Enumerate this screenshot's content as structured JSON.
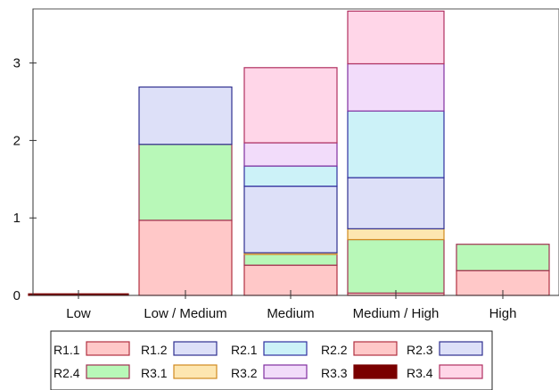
{
  "chart_data": {
    "type": "bar",
    "stacked": true,
    "title": "",
    "xlabel": "",
    "ylabel": "",
    "categories": [
      "Low",
      "Low / Medium",
      "Medium",
      "Medium / High",
      "High"
    ],
    "ylim": [
      0,
      3.7
    ],
    "yticks": [
      0,
      1,
      2,
      3
    ],
    "grid": false,
    "legend_position": "bottom",
    "legend_order": [
      "R1.1",
      "R1.2",
      "R2.1",
      "R2.2",
      "R2.3",
      "R2.4",
      "R3.1",
      "R3.2",
      "R3.3",
      "R3.4"
    ],
    "series": [
      {
        "name": "R1.1",
        "fill": "#ffc8c8",
        "stroke": "#b03040",
        "values": [
          0,
          0,
          0,
          0,
          0.32
        ]
      },
      {
        "name": "R1.2",
        "fill": "#dde0f8",
        "stroke": "#303090",
        "values": [
          0,
          0.74,
          0,
          0,
          0
        ]
      },
      {
        "name": "R2.1",
        "fill": "#ccf2f8",
        "stroke": "#3030a0",
        "values": [
          0,
          0,
          0.26,
          0.86,
          0
        ]
      },
      {
        "name": "R2.2",
        "fill": "#ffc8c8",
        "stroke": "#b03040",
        "values": [
          0,
          0.97,
          0.39,
          0.03,
          0
        ]
      },
      {
        "name": "R2.3",
        "fill": "#dde0f8",
        "stroke": "#303090",
        "values": [
          0,
          0,
          0.86,
          0.66,
          0
        ]
      },
      {
        "name": "R2.4",
        "fill": "#b8f8b8",
        "stroke": "#a03050",
        "values": [
          0,
          0.98,
          0.14,
          0.69,
          0.34
        ]
      },
      {
        "name": "R3.1",
        "fill": "#fde6b0",
        "stroke": "#d08a20",
        "values": [
          0,
          0,
          0.02,
          0.14,
          0
        ]
      },
      {
        "name": "R3.2",
        "fill": "#f2dcfa",
        "stroke": "#8030a0",
        "values": [
          0,
          0,
          0.3,
          0.61,
          0
        ]
      },
      {
        "name": "R3.3",
        "fill": "#7a0000",
        "stroke": "#7a0000",
        "values": [
          0.02,
          0,
          0,
          0,
          0
        ]
      },
      {
        "name": "R3.4",
        "fill": "#ffd6e8",
        "stroke": "#b03060",
        "values": [
          0,
          0,
          0.97,
          0.68,
          0
        ]
      }
    ],
    "stack_order": [
      "R3.3",
      "R2.2",
      "R1.1",
      "R2.4",
      "R3.1",
      "R2.3",
      "R2.1",
      "R3.2",
      "R3.4",
      "R1.2"
    ]
  }
}
